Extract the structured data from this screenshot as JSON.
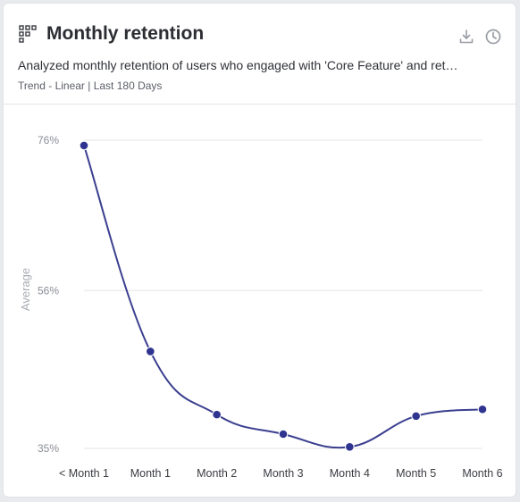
{
  "card": {
    "title": "Monthly retention",
    "description": "Analyzed monthly retention of users who engaged with 'Core Feature' and ret…",
    "meta": "Trend - Linear | Last 180 Days",
    "icons": [
      "grid-icon",
      "download-icon",
      "history-icon"
    ]
  },
  "colors": {
    "line": "#3b3f8f",
    "point": "#2f3490",
    "grid": "#e4e5e9"
  },
  "chart_data": {
    "type": "line",
    "title": "",
    "xlabel": "",
    "ylabel": "Average",
    "categories": [
      "< Month 1",
      "Month 1",
      "Month 2",
      "Month 3",
      "Month 4",
      "Month 5",
      "Month 6"
    ],
    "series": [
      {
        "values": [
          75.3,
          47.9,
          39.5,
          36.9,
          35.2,
          39.3,
          40.2
        ]
      }
    ],
    "y_ticks": [
      35,
      56,
      76
    ],
    "y_tick_labels": [
      "35%",
      "56%",
      "76%"
    ],
    "ylim": [
      35,
      76
    ],
    "grid": true,
    "legend": "none"
  }
}
